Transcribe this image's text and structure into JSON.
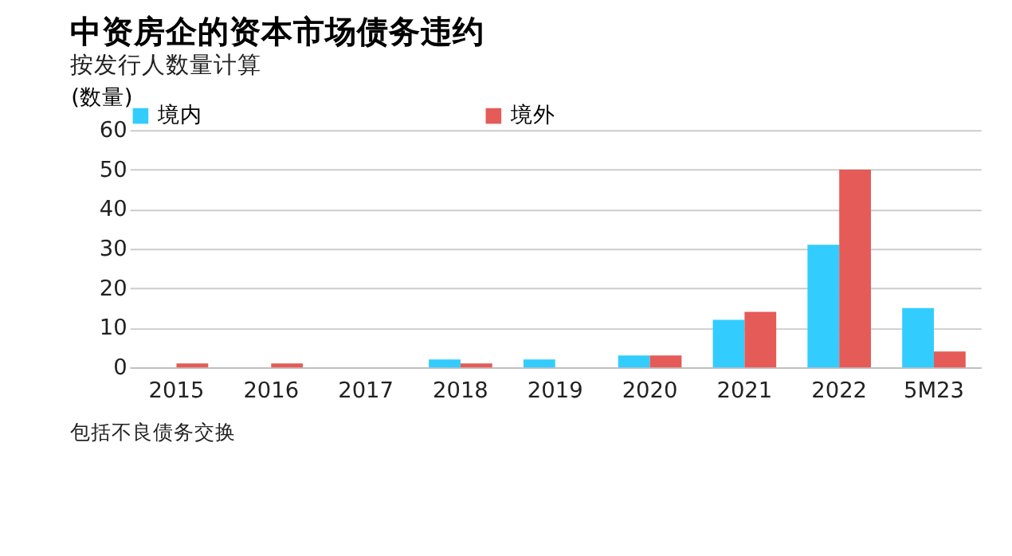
{
  "chart_data": {
    "type": "bar",
    "title": "中资房企的资本市场债务违约",
    "subtitle": "按发行人数量计算",
    "ylabel": "(数量)",
    "categories": [
      "2015",
      "2016",
      "2017",
      "2018",
      "2019",
      "2020",
      "2021",
      "2022",
      "5M23"
    ],
    "series": [
      {
        "name": "境内",
        "color": "#33ccff",
        "values": [
          0,
          0,
          0,
          2,
          2,
          3,
          12,
          31,
          15
        ]
      },
      {
        "name": "境外",
        "color": "#e55b57",
        "values": [
          1,
          1,
          0,
          1,
          0,
          3,
          14,
          50,
          4
        ]
      }
    ],
    "ylim": [
      0,
      60
    ],
    "yticks": [
      0,
      10,
      20,
      30,
      40,
      50,
      60
    ],
    "grid": "y",
    "legend": "top",
    "annotations": [
      "包括不良债务交换"
    ]
  }
}
